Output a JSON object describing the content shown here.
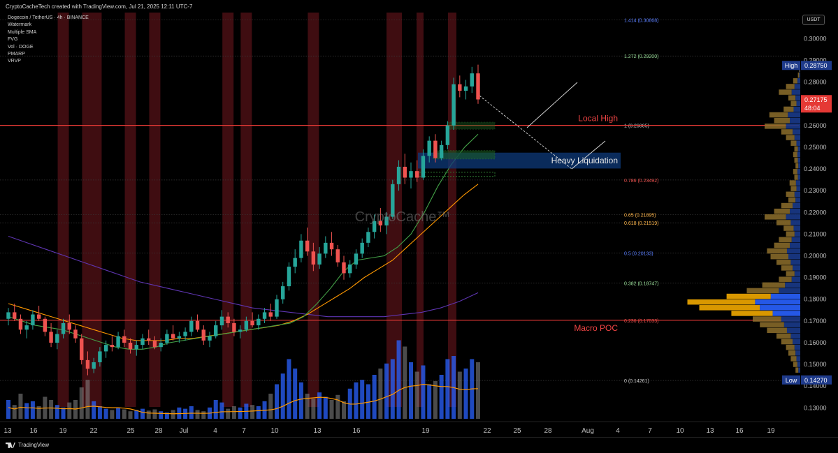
{
  "header": {
    "credit": "CryptoCacheTech created with TradingView.com, Jul 21, 2025 12:11 UTC-7"
  },
  "legend": {
    "symbol": "Dogecoin / TetherUS · 4h · BINANCE",
    "indicators": [
      "Watermark",
      "Multiple SMA",
      "FVG",
      "Vol · DOGE",
      "PMARP",
      "VRVP"
    ]
  },
  "currency_button": "USDT",
  "watermark": "CryptoCache™",
  "footer": {
    "brand": "TradingView"
  },
  "colors": {
    "up": "#26a69a",
    "down": "#ef5350",
    "sma_fast": "#43a047",
    "sma_mid": "#ff9800",
    "sma_slow": "#5e35b1",
    "level_line": "#e53935",
    "volume_up": "#2962ff",
    "volume_neutral": "#888888",
    "heatmap": "#4a0f14"
  },
  "chart_data": {
    "type": "candlestick",
    "title": "",
    "ylim": [
      0.124,
      0.312
    ],
    "x_tick_labels": [
      "13",
      "16",
      "19",
      "22",
      "25",
      "28",
      "Jul",
      "4",
      "7",
      "10",
      "13",
      "16",
      "19",
      "22",
      "25",
      "28",
      "Aug",
      "4",
      "7",
      "10",
      "13",
      "16",
      "19"
    ],
    "y_tick_labels": [
      "0.30000",
      "0.29000",
      "0.28000",
      "0.27000",
      "0.26000",
      "0.25000",
      "0.24000",
      "0.23000",
      "0.22000",
      "0.21000",
      "0.20000",
      "0.19000",
      "0.18000",
      "0.17000",
      "0.16000",
      "0.15000",
      "0.14000",
      "0.13000"
    ],
    "fib_levels": [
      {
        "label": "1.414 (0.30868)",
        "value": 0.30868,
        "color": "#5b7fff"
      },
      {
        "label": "1.272 (0.29200)",
        "value": 0.292,
        "color": "#9be09b"
      },
      {
        "label": "1 (0.26005)",
        "value": 0.26005,
        "color": "#cccccc"
      },
      {
        "label": "0.786 (0.23492)",
        "value": 0.23492,
        "color": "#ef5350"
      },
      {
        "label": "0.65 (0.21895)",
        "value": 0.21895,
        "color": "#ffb74d"
      },
      {
        "label": "0.618 (0.21519)",
        "value": 0.21519,
        "color": "#ffb74d"
      },
      {
        "label": "0.5 (0.20133)",
        "value": 0.20133,
        "color": "#5b7fff"
      },
      {
        "label": "0.382 (0.18747)",
        "value": 0.18747,
        "color": "#9be09b"
      },
      {
        "label": "0.236 (0.17033)",
        "value": 0.17033,
        "color": "#ef5350"
      },
      {
        "label": "0 (0.14261)",
        "value": 0.14261,
        "color": "#cccccc"
      }
    ],
    "horizontal_lines": [
      {
        "label": "Local High",
        "value": 0.26005
      },
      {
        "label": "Macro POC",
        "value": 0.17033
      }
    ],
    "zone_label": "Heavy Liquidation",
    "zone_range": [
      0.2402,
      0.2475
    ],
    "price_tags": [
      {
        "label": "High",
        "value": "0.28750",
        "kind": "high"
      },
      {
        "label": "",
        "value": "0.27175",
        "kind": "last"
      },
      {
        "label": "",
        "value": "48:04",
        "kind": "timer"
      },
      {
        "label": "Low",
        "value": "0.14270",
        "kind": "low"
      }
    ],
    "candles": [
      [
        0.171,
        0.176,
        0.168,
        0.174
      ],
      [
        0.174,
        0.178,
        0.17,
        0.171
      ],
      [
        0.171,
        0.173,
        0.164,
        0.166
      ],
      [
        0.166,
        0.17,
        0.162,
        0.168
      ],
      [
        0.168,
        0.175,
        0.166,
        0.173
      ],
      [
        0.173,
        0.177,
        0.17,
        0.171
      ],
      [
        0.171,
        0.172,
        0.163,
        0.165
      ],
      [
        0.165,
        0.169,
        0.158,
        0.16
      ],
      [
        0.16,
        0.166,
        0.157,
        0.164
      ],
      [
        0.164,
        0.171,
        0.162,
        0.169
      ],
      [
        0.169,
        0.173,
        0.164,
        0.166
      ],
      [
        0.166,
        0.168,
        0.16,
        0.162
      ],
      [
        0.162,
        0.164,
        0.15,
        0.152
      ],
      [
        0.152,
        0.156,
        0.145,
        0.148
      ],
      [
        0.148,
        0.153,
        0.146,
        0.151
      ],
      [
        0.151,
        0.158,
        0.149,
        0.156
      ],
      [
        0.156,
        0.161,
        0.153,
        0.159
      ],
      [
        0.159,
        0.163,
        0.156,
        0.158
      ],
      [
        0.158,
        0.165,
        0.157,
        0.163
      ],
      [
        0.163,
        0.166,
        0.158,
        0.16
      ],
      [
        0.16,
        0.162,
        0.155,
        0.157
      ],
      [
        0.157,
        0.161,
        0.154,
        0.159
      ],
      [
        0.159,
        0.164,
        0.157,
        0.162
      ],
      [
        0.162,
        0.166,
        0.159,
        0.161
      ],
      [
        0.161,
        0.163,
        0.157,
        0.158
      ],
      [
        0.158,
        0.162,
        0.156,
        0.16
      ],
      [
        0.16,
        0.166,
        0.159,
        0.164
      ],
      [
        0.164,
        0.168,
        0.161,
        0.162
      ],
      [
        0.162,
        0.165,
        0.16,
        0.163
      ],
      [
        0.163,
        0.167,
        0.161,
        0.165
      ],
      [
        0.165,
        0.172,
        0.163,
        0.17
      ],
      [
        0.17,
        0.173,
        0.165,
        0.166
      ],
      [
        0.166,
        0.168,
        0.159,
        0.161
      ],
      [
        0.161,
        0.165,
        0.158,
        0.163
      ],
      [
        0.163,
        0.17,
        0.162,
        0.168
      ],
      [
        0.168,
        0.175,
        0.166,
        0.172
      ],
      [
        0.172,
        0.174,
        0.167,
        0.169
      ],
      [
        0.169,
        0.171,
        0.163,
        0.165
      ],
      [
        0.165,
        0.168,
        0.162,
        0.166
      ],
      [
        0.166,
        0.172,
        0.165,
        0.17
      ],
      [
        0.17,
        0.174,
        0.167,
        0.168
      ],
      [
        0.168,
        0.173,
        0.166,
        0.171
      ],
      [
        0.171,
        0.176,
        0.169,
        0.174
      ],
      [
        0.174,
        0.178,
        0.17,
        0.172
      ],
      [
        0.172,
        0.182,
        0.171,
        0.18
      ],
      [
        0.18,
        0.188,
        0.178,
        0.186
      ],
      [
        0.186,
        0.197,
        0.184,
        0.195
      ],
      [
        0.195,
        0.203,
        0.192,
        0.199
      ],
      [
        0.199,
        0.21,
        0.197,
        0.207
      ],
      [
        0.207,
        0.213,
        0.2,
        0.202
      ],
      [
        0.202,
        0.206,
        0.193,
        0.196
      ],
      [
        0.196,
        0.204,
        0.194,
        0.201
      ],
      [
        0.201,
        0.209,
        0.199,
        0.206
      ],
      [
        0.206,
        0.211,
        0.2,
        0.203
      ],
      [
        0.203,
        0.205,
        0.195,
        0.197
      ],
      [
        0.197,
        0.2,
        0.189,
        0.192
      ],
      [
        0.192,
        0.198,
        0.19,
        0.196
      ],
      [
        0.196,
        0.203,
        0.194,
        0.201
      ],
      [
        0.201,
        0.208,
        0.199,
        0.206
      ],
      [
        0.206,
        0.213,
        0.204,
        0.211
      ],
      [
        0.211,
        0.219,
        0.208,
        0.216
      ],
      [
        0.216,
        0.222,
        0.211,
        0.214
      ],
      [
        0.214,
        0.22,
        0.21,
        0.218
      ],
      [
        0.218,
        0.235,
        0.217,
        0.233
      ],
      [
        0.233,
        0.244,
        0.23,
        0.241
      ],
      [
        0.241,
        0.247,
        0.233,
        0.236
      ],
      [
        0.236,
        0.243,
        0.231,
        0.239
      ],
      [
        0.239,
        0.244,
        0.234,
        0.236
      ],
      [
        0.236,
        0.249,
        0.235,
        0.246
      ],
      [
        0.246,
        0.255,
        0.243,
        0.253
      ],
      [
        0.253,
        0.256,
        0.243,
        0.245
      ],
      [
        0.245,
        0.253,
        0.244,
        0.251
      ],
      [
        0.251,
        0.262,
        0.249,
        0.26
      ],
      [
        0.26,
        0.282,
        0.258,
        0.279
      ],
      [
        0.279,
        0.283,
        0.273,
        0.276
      ],
      [
        0.276,
        0.281,
        0.272,
        0.278
      ],
      [
        0.278,
        0.287,
        0.275,
        0.284
      ],
      [
        0.284,
        0.288,
        0.27,
        0.272
      ]
    ],
    "volume": [
      0.3,
      0.22,
      0.4,
      0.25,
      0.28,
      0.2,
      0.35,
      0.3,
      0.22,
      0.18,
      0.26,
      0.3,
      0.5,
      0.62,
      0.28,
      0.2,
      0.16,
      0.14,
      0.18,
      0.15,
      0.12,
      0.14,
      0.16,
      0.13,
      0.15,
      0.12,
      0.1,
      0.14,
      0.18,
      0.16,
      0.2,
      0.14,
      0.12,
      0.18,
      0.3,
      0.26,
      0.16,
      0.2,
      0.18,
      0.24,
      0.22,
      0.2,
      0.28,
      0.4,
      0.55,
      0.72,
      0.95,
      0.8,
      0.58,
      0.4,
      0.32,
      0.42,
      0.35,
      0.3,
      0.38,
      0.28,
      0.48,
      0.58,
      0.62,
      0.55,
      0.7,
      0.8,
      0.88,
      0.95,
      1.25,
      1.15,
      0.9,
      0.75,
      0.85,
      0.55,
      0.6,
      0.7,
      0.95,
      1.0,
      0.75,
      0.8,
      0.95,
      0.9
    ],
    "heatmap_bars": [
      9,
      13,
      20,
      24,
      36,
      39,
      50
    ],
    "sma_fast": [
      0.172,
      0.17,
      0.168,
      0.167,
      0.166,
      0.164,
      0.162,
      0.16,
      0.158,
      0.157,
      0.157,
      0.158,
      0.16,
      0.161,
      0.162,
      0.163,
      0.164,
      0.165,
      0.166,
      0.167,
      0.168,
      0.169,
      0.172,
      0.178,
      0.185,
      0.193,
      0.198,
      0.199,
      0.2,
      0.204,
      0.21,
      0.22,
      0.232,
      0.242,
      0.25,
      0.256
    ],
    "sma_mid": [
      0.178,
      0.176,
      0.174,
      0.172,
      0.17,
      0.168,
      0.166,
      0.164,
      0.162,
      0.161,
      0.161,
      0.161,
      0.162,
      0.162,
      0.163,
      0.164,
      0.165,
      0.166,
      0.167,
      0.168,
      0.17,
      0.173,
      0.177,
      0.181,
      0.185,
      0.19,
      0.194,
      0.198,
      0.204,
      0.21,
      0.216,
      0.222,
      0.228,
      0.233
    ],
    "sma_slow": [
      0.209,
      0.206,
      0.203,
      0.2,
      0.197,
      0.194,
      0.191,
      0.188,
      0.186,
      0.184,
      0.182,
      0.18,
      0.178,
      0.176,
      0.175,
      0.174,
      0.173,
      0.172,
      0.172,
      0.172,
      0.172,
      0.173,
      0.174,
      0.176,
      0.179,
      0.183
    ],
    "vrvp": [
      0.01,
      0.02,
      0.06,
      0.12,
      0.18,
      0.1,
      0.08,
      0.14,
      0.26,
      0.22,
      0.3,
      0.16,
      0.12,
      0.08,
      0.05,
      0.06,
      0.05,
      0.04,
      0.06,
      0.05,
      0.09,
      0.08,
      0.12,
      0.1,
      0.16,
      0.22,
      0.3,
      0.2,
      0.14,
      0.12,
      0.18,
      0.22,
      0.28,
      0.25,
      0.2,
      0.16,
      0.12,
      0.18,
      0.32,
      0.45,
      0.62,
      0.95,
      0.85,
      0.58,
      0.4,
      0.34,
      0.28,
      0.2,
      0.16,
      0.12,
      0.1,
      0.08,
      0.06,
      0.04
    ]
  }
}
